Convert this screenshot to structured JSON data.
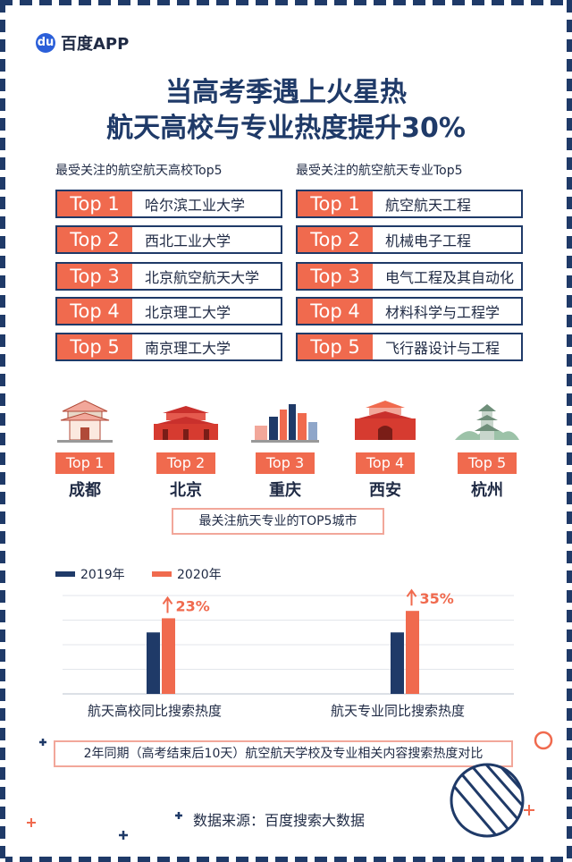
{
  "brand": {
    "icon": "baidu-paw-icon",
    "name": "百度APP"
  },
  "title": {
    "line1": "当高考季遇上火星热",
    "line2": "航天高校与专业热度提升30%"
  },
  "universities": {
    "heading": "最受关注的航空航天高校Top5",
    "items": [
      {
        "rank": "Top 1",
        "name": "哈尔滨工业大学"
      },
      {
        "rank": "Top 2",
        "name": "西北工业大学"
      },
      {
        "rank": "Top 3",
        "name": "北京航空航天大学"
      },
      {
        "rank": "Top 4",
        "name": "北京理工大学"
      },
      {
        "rank": "Top 5",
        "name": "南京理工大学"
      }
    ]
  },
  "majors": {
    "heading": "最受关注的航空航天专业Top5",
    "items": [
      {
        "rank": "Top 1",
        "name": "航空航天工程"
      },
      {
        "rank": "Top 2",
        "name": "机械电子工程"
      },
      {
        "rank": "Top 3",
        "name": "电气工程及其自动化"
      },
      {
        "rank": "Top 4",
        "name": "材料科学与工程学"
      },
      {
        "rank": "Top 5",
        "name": "飞行器设计与工程"
      }
    ]
  },
  "cities": {
    "items": [
      {
        "rank": "Top 1",
        "name": "成都",
        "icon": "pavilion-icon"
      },
      {
        "rank": "Top 2",
        "name": "北京",
        "icon": "tiananmen-icon"
      },
      {
        "rank": "Top 3",
        "name": "重庆",
        "icon": "skyline-icon"
      },
      {
        "rank": "Top 4",
        "name": "西安",
        "icon": "city-gate-icon"
      },
      {
        "rank": "Top 5",
        "name": "杭州",
        "icon": "pagoda-icon"
      }
    ],
    "caption": "最关注航天专业的TOP5城市"
  },
  "chart_data": {
    "type": "bar",
    "categories": [
      "航天高校同比搜索热度",
      "航天专业同比搜索热度"
    ],
    "series": [
      {
        "name": "2019年",
        "values": [
          100,
          100
        ],
        "color": "#1f3a68"
      },
      {
        "name": "2020年",
        "values": [
          123,
          135
        ],
        "color": "#f06a4e"
      }
    ],
    "annotations": [
      "23%",
      "35%"
    ],
    "ylim": [
      0,
      160
    ],
    "grid": true,
    "legend": "top-left"
  },
  "chart_caption": "2年同期（高考结束后10天）航空航天学校及专业相关内容搜索热度对比",
  "source": "数据来源：百度搜索大数据",
  "colors": {
    "navy": "#1f3a68",
    "coral": "#f06a4e",
    "light_coral": "#f2a79a"
  }
}
